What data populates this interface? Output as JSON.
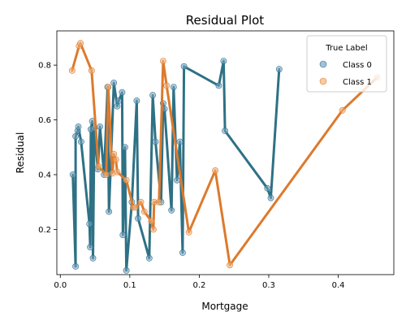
{
  "chart_data": {
    "type": "line",
    "title": "Residual Plot",
    "xlabel": "Mortgage",
    "ylabel": "Residual",
    "xlim": [
      -0.005,
      0.48
    ],
    "ylim": [
      0.035,
      0.925
    ],
    "xticks": [
      0.0,
      0.1,
      0.2,
      0.3,
      0.4
    ],
    "xtick_labels": [
      "0.0",
      "0.1",
      "0.2",
      "0.3",
      "0.4"
    ],
    "yticks": [
      0.2,
      0.4,
      0.6,
      0.8
    ],
    "ytick_labels": [
      "0.2",
      "0.4",
      "0.6",
      "0.8"
    ],
    "grid": false,
    "legend": {
      "title": "True Label",
      "placement": "top-right"
    },
    "series": [
      {
        "name": "Class 0",
        "color": "#2e7185",
        "marker_color": "#7aa6c9",
        "points": [
          [
            0.018,
            0.4
          ],
          [
            0.022,
            0.065
          ],
          [
            0.022,
            0.54
          ],
          [
            0.025,
            0.56
          ],
          [
            0.026,
            0.575
          ],
          [
            0.03,
            0.52
          ],
          [
            0.042,
            0.22
          ],
          [
            0.043,
            0.135
          ],
          [
            0.044,
            0.565
          ],
          [
            0.046,
            0.595
          ],
          [
            0.047,
            0.095
          ],
          [
            0.049,
            0.57
          ],
          [
            0.054,
            0.42
          ],
          [
            0.057,
            0.575
          ],
          [
            0.063,
            0.4
          ],
          [
            0.068,
            0.72
          ],
          [
            0.07,
            0.265
          ],
          [
            0.077,
            0.735
          ],
          [
            0.082,
            0.65
          ],
          [
            0.084,
            0.67
          ],
          [
            0.089,
            0.7
          ],
          [
            0.09,
            0.18
          ],
          [
            0.093,
            0.5
          ],
          [
            0.095,
            0.05
          ],
          [
            0.103,
            0.3
          ],
          [
            0.11,
            0.67
          ],
          [
            0.112,
            0.24
          ],
          [
            0.128,
            0.095
          ],
          [
            0.133,
            0.69
          ],
          [
            0.137,
            0.52
          ],
          [
            0.145,
            0.3
          ],
          [
            0.148,
            0.66
          ],
          [
            0.15,
            0.64
          ],
          [
            0.16,
            0.27
          ],
          [
            0.163,
            0.72
          ],
          [
            0.168,
            0.38
          ],
          [
            0.172,
            0.52
          ],
          [
            0.176,
            0.115
          ],
          [
            0.178,
            0.795
          ],
          [
            0.228,
            0.725
          ],
          [
            0.235,
            0.815
          ],
          [
            0.237,
            0.56
          ],
          [
            0.298,
            0.35
          ],
          [
            0.303,
            0.315
          ],
          [
            0.315,
            0.785
          ]
        ]
      },
      {
        "name": "Class 1",
        "color": "#dd7a2c",
        "marker_color": "#f2b57f",
        "points": [
          [
            0.017,
            0.78
          ],
          [
            0.027,
            0.87
          ],
          [
            0.029,
            0.88
          ],
          [
            0.045,
            0.78
          ],
          [
            0.055,
            0.43
          ],
          [
            0.066,
            0.4
          ],
          [
            0.069,
            0.72
          ],
          [
            0.075,
            0.405
          ],
          [
            0.077,
            0.475
          ],
          [
            0.08,
            0.455
          ],
          [
            0.082,
            0.41
          ],
          [
            0.095,
            0.38
          ],
          [
            0.105,
            0.28
          ],
          [
            0.108,
            0.28
          ],
          [
            0.116,
            0.3
          ],
          [
            0.121,
            0.265
          ],
          [
            0.131,
            0.23
          ],
          [
            0.134,
            0.2
          ],
          [
            0.135,
            0.3
          ],
          [
            0.142,
            0.3
          ],
          [
            0.148,
            0.815
          ],
          [
            0.153,
            0.725
          ],
          [
            0.185,
            0.19
          ],
          [
            0.223,
            0.415
          ],
          [
            0.244,
            0.07
          ],
          [
            0.406,
            0.635
          ],
          [
            0.456,
            0.755
          ]
        ]
      }
    ]
  }
}
